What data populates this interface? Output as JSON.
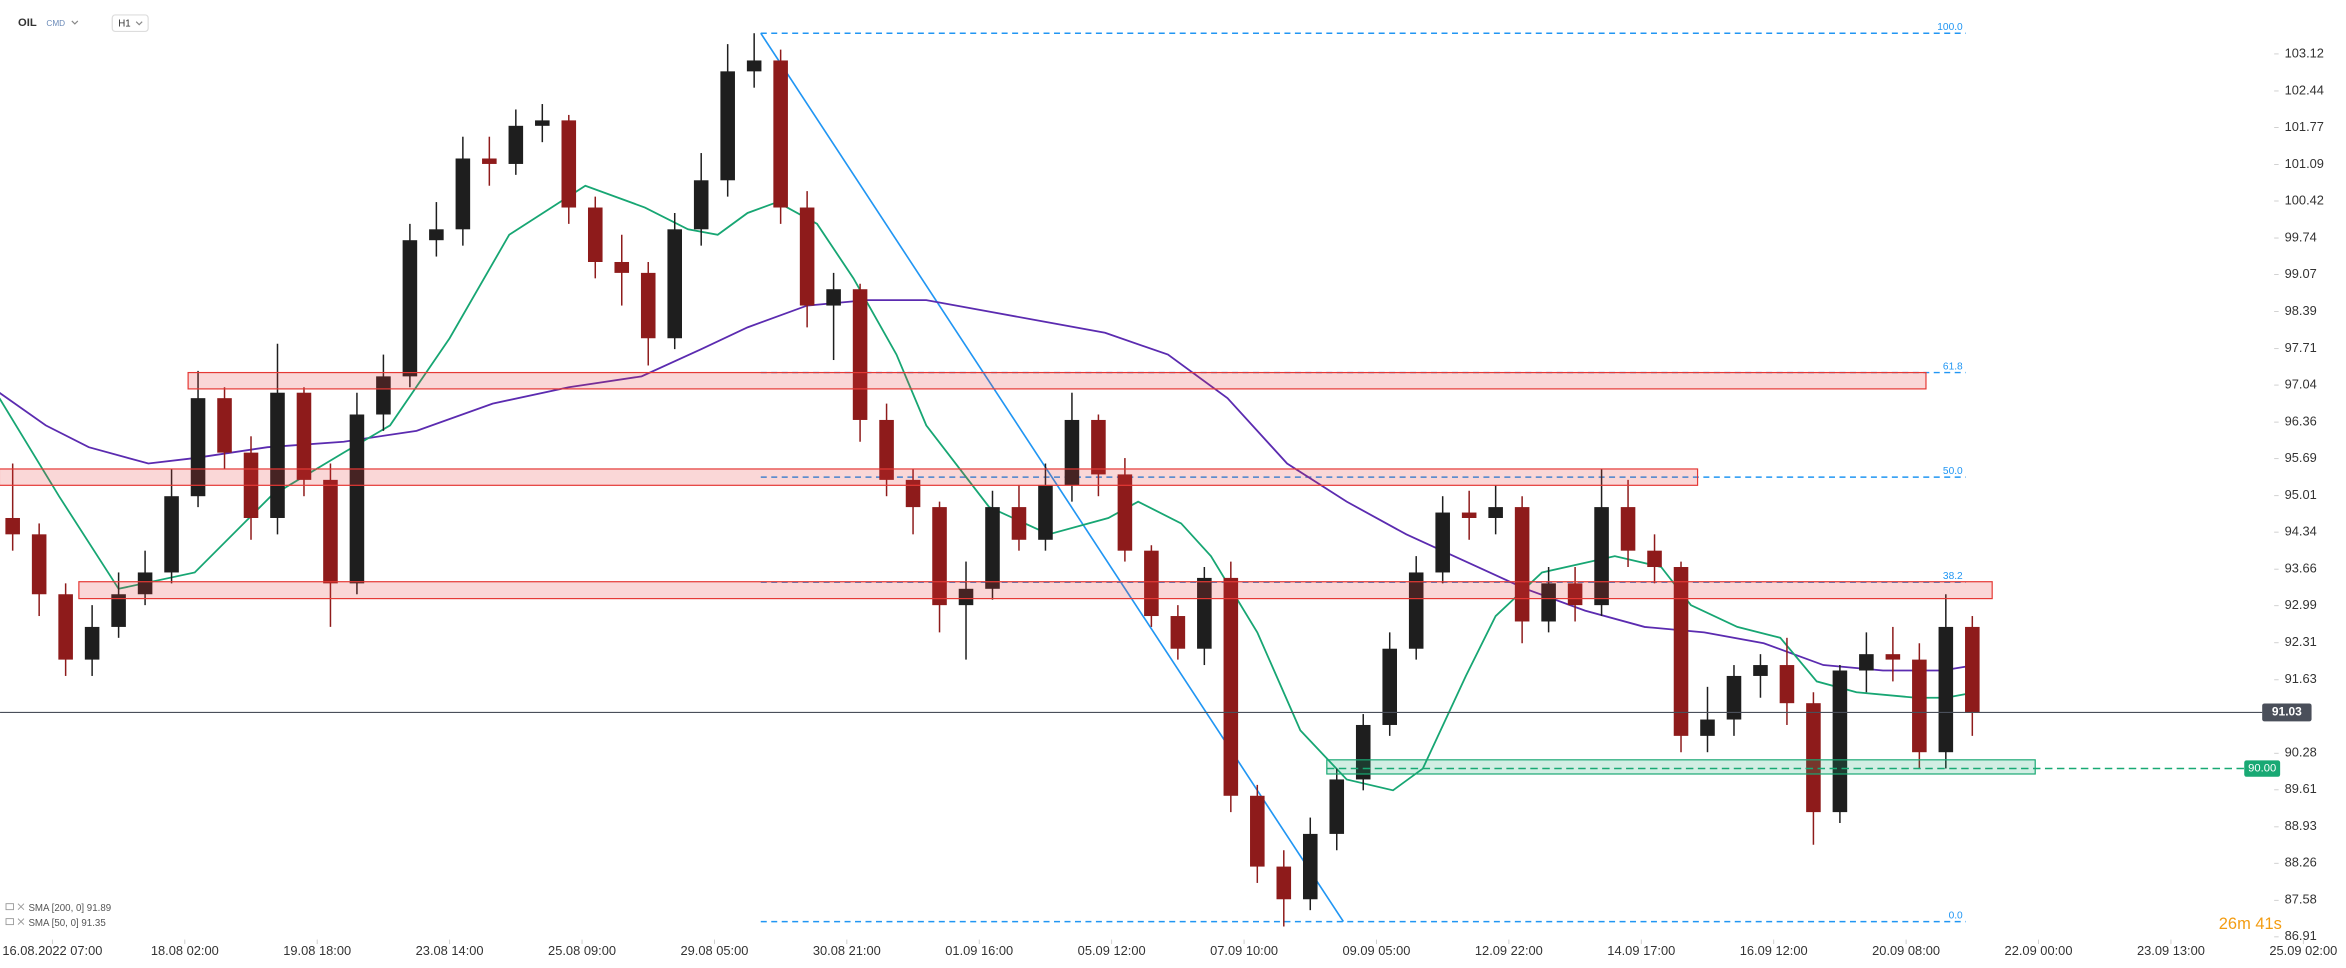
{
  "chart_data": {
    "type": "candlestick",
    "symbol": "OIL",
    "market": "CMD",
    "timeframe": "H1",
    "countdown": "26m 41s",
    "up_color": "#1e1e1e",
    "down_color": "#8e1b1b",
    "grid": false,
    "xlim": [
      -15.82,
      692.88
    ],
    "ylim": [
      86.86,
      104.11
    ],
    "xticks": [
      {
        "value": 0,
        "label": "16.08.2022 07:00"
      },
      {
        "value": 40,
        "label": "18.08 02:00"
      },
      {
        "value": 80,
        "label": "19.08 18:00"
      },
      {
        "value": 120,
        "label": "23.08 14:00"
      },
      {
        "value": 160,
        "label": "25.08 09:00"
      },
      {
        "value": 200,
        "label": "29.08 05:00"
      },
      {
        "value": 240,
        "label": "30.08 21:00"
      },
      {
        "value": 280,
        "label": "01.09 16:00"
      },
      {
        "value": 320,
        "label": "05.09 12:00"
      },
      {
        "value": 360,
        "label": "07.09 10:00"
      },
      {
        "value": 400,
        "label": "09.09 05:00"
      },
      {
        "value": 440,
        "label": "12.09 22:00"
      },
      {
        "value": 480,
        "label": "14.09 17:00"
      },
      {
        "value": 520,
        "label": "16.09 12:00"
      },
      {
        "value": 560,
        "label": "20.09 08:00"
      },
      {
        "value": 600,
        "label": "22.09 00:00"
      },
      {
        "value": 640,
        "label": "23.09 13:00"
      },
      {
        "value": 680,
        "label": "25.09 02:00"
      }
    ],
    "yticks": [
      103.12,
      102.44,
      101.77,
      101.09,
      100.42,
      99.74,
      99.07,
      98.39,
      97.71,
      97.04,
      96.36,
      95.69,
      95.01,
      94.34,
      93.66,
      92.99,
      92.31,
      91.63,
      90.28,
      89.61,
      88.93,
      88.26,
      87.58,
      86.91
    ],
    "x": [
      -12,
      -4,
      4,
      12,
      20,
      28,
      36,
      44,
      52,
      60,
      68,
      76,
      84,
      92,
      100,
      108,
      116,
      124,
      132,
      140,
      148,
      156,
      164,
      172,
      180,
      188,
      196,
      204,
      212,
      220,
      228,
      236,
      244,
      252,
      260,
      268,
      276,
      284,
      292,
      300,
      308,
      316,
      324,
      332,
      340,
      348,
      356,
      364,
      372,
      380,
      388,
      396,
      404,
      412,
      420,
      428,
      436,
      444,
      452,
      460,
      468,
      476,
      484,
      492,
      500,
      508,
      516,
      524,
      532,
      540,
      548,
      556,
      564,
      572,
      580
    ],
    "open": [
      94.6,
      94.3,
      93.2,
      92.0,
      92.6,
      93.2,
      93.6,
      95.0,
      96.8,
      95.8,
      94.6,
      96.9,
      95.3,
      93.4,
      96.5,
      97.2,
      99.7,
      99.9,
      101.2,
      101.1,
      101.8,
      101.9,
      100.3,
      99.3,
      99.1,
      97.9,
      99.9,
      100.8,
      102.8,
      103.0,
      100.3,
      98.5,
      98.8,
      96.4,
      95.3,
      94.8,
      93.0,
      93.3,
      94.8,
      94.2,
      95.2,
      96.4,
      95.4,
      94.0,
      92.8,
      92.2,
      93.5,
      89.5,
      88.2,
      87.6,
      88.8,
      89.8,
      90.8,
      92.2,
      93.6,
      94.7,
      94.6,
      94.8,
      92.7,
      93.4,
      93.0,
      94.8,
      94.0,
      93.7,
      90.6,
      90.9,
      91.7,
      91.9,
      91.2,
      89.2,
      91.8,
      92.1,
      92.0,
      90.3,
      92.6
    ],
    "high": [
      95.6,
      94.5,
      93.4,
      93.0,
      93.6,
      94.0,
      95.5,
      97.3,
      97.0,
      96.1,
      97.8,
      97.0,
      95.6,
      96.9,
      97.6,
      100.0,
      100.4,
      101.6,
      101.6,
      102.1,
      102.2,
      102.0,
      100.5,
      99.8,
      99.3,
      100.2,
      101.3,
      103.3,
      103.5,
      103.2,
      100.6,
      99.1,
      98.9,
      96.7,
      95.5,
      94.9,
      93.8,
      95.1,
      95.2,
      95.6,
      96.9,
      96.5,
      95.7,
      94.1,
      93.0,
      93.7,
      93.8,
      89.7,
      88.5,
      89.1,
      90.0,
      91.0,
      92.5,
      93.9,
      95.0,
      95.1,
      95.2,
      95.0,
      93.7,
      93.7,
      95.5,
      95.3,
      94.3,
      93.8,
      91.5,
      91.9,
      92.1,
      92.4,
      91.4,
      91.9,
      92.5,
      92.6,
      92.3,
      93.2,
      92.8
    ],
    "low": [
      94.0,
      92.8,
      91.7,
      91.7,
      92.4,
      93.0,
      93.4,
      94.8,
      95.5,
      94.2,
      94.3,
      95.0,
      92.6,
      93.2,
      96.2,
      97.0,
      99.4,
      99.6,
      100.7,
      100.9,
      101.5,
      100.0,
      99.0,
      98.5,
      97.4,
      97.7,
      99.6,
      100.5,
      102.5,
      100.0,
      98.1,
      97.5,
      96.0,
      95.0,
      94.3,
      92.5,
      92.0,
      93.1,
      94.0,
      94.0,
      94.9,
      95.0,
      93.8,
      92.6,
      92.0,
      91.9,
      89.2,
      87.9,
      87.1,
      87.4,
      88.5,
      89.6,
      90.6,
      92.0,
      93.4,
      94.2,
      94.3,
      92.3,
      92.5,
      92.7,
      92.8,
      93.7,
      93.4,
      90.3,
      90.3,
      90.6,
      91.3,
      90.8,
      88.6,
      89.0,
      91.4,
      91.6,
      90.0,
      90.0,
      90.6
    ],
    "close": [
      94.3,
      93.2,
      92.0,
      92.6,
      93.2,
      93.6,
      95.0,
      96.8,
      95.8,
      94.6,
      96.9,
      95.3,
      93.4,
      96.5,
      97.2,
      99.7,
      99.9,
      101.2,
      101.1,
      101.8,
      101.9,
      100.3,
      99.3,
      99.1,
      97.9,
      99.9,
      100.8,
      102.8,
      103.0,
      100.3,
      98.5,
      98.8,
      96.4,
      95.3,
      94.8,
      93.0,
      93.3,
      94.8,
      94.2,
      95.2,
      96.4,
      95.4,
      94.0,
      92.8,
      92.2,
      93.5,
      89.5,
      88.2,
      87.6,
      88.8,
      89.8,
      90.8,
      92.2,
      93.6,
      94.7,
      94.6,
      94.8,
      92.7,
      93.4,
      93.0,
      94.8,
      94.0,
      93.7,
      90.6,
      90.9,
      91.7,
      91.9,
      91.2,
      89.2,
      91.8,
      92.1,
      92.0,
      90.3,
      92.6,
      91.03
    ],
    "overlays": [
      {
        "name": "SMA [200, 0]",
        "last_value": 91.89,
        "color": "#5b2bb0",
        "x": [
          -16,
          -2,
          11,
          29,
          43,
          65,
          88,
          110,
          133,
          156,
          178,
          196,
          210,
          228,
          246,
          264,
          282,
          300,
          318,
          337,
          355,
          373,
          391,
          409,
          427,
          445,
          463,
          481,
          499,
          517,
          535,
          553,
          571,
          581
        ],
        "values": [
          96.9,
          96.3,
          95.9,
          95.6,
          95.7,
          95.9,
          96.0,
          96.2,
          96.7,
          97.0,
          97.2,
          97.7,
          98.1,
          98.5,
          98.6,
          98.6,
          98.4,
          98.2,
          98.0,
          97.6,
          96.8,
          95.6,
          94.9,
          94.3,
          93.8,
          93.3,
          92.9,
          92.6,
          92.5,
          92.3,
          91.9,
          91.8,
          91.8,
          91.9
        ]
      },
      {
        "name": "SMA [50, 0]",
        "last_value": 91.35,
        "color": "#17a673",
        "x": [
          -16,
          2,
          20,
          43,
          66,
          88,
          102,
          120,
          138,
          161,
          179,
          192,
          201,
          210,
          219,
          231,
          242,
          255,
          264,
          283,
          301,
          319,
          328,
          341,
          350,
          364,
          377,
          391,
          405,
          414,
          427,
          436,
          450,
          472,
          486,
          495,
          509,
          522,
          533,
          545,
          563,
          572,
          581
        ],
        "values": [
          96.8,
          95.0,
          93.3,
          93.6,
          95.0,
          95.8,
          96.3,
          97.9,
          99.8,
          100.7,
          100.3,
          99.9,
          99.8,
          100.2,
          100.4,
          100.0,
          99.0,
          97.6,
          96.3,
          94.8,
          94.3,
          94.6,
          94.9,
          94.5,
          93.9,
          92.5,
          90.7,
          89.8,
          89.6,
          90.0,
          91.7,
          92.8,
          93.6,
          93.9,
          93.7,
          93.0,
          92.6,
          92.4,
          91.6,
          91.4,
          91.3,
          91.3,
          91.4
        ]
      }
    ],
    "zones": [
      {
        "top": 97.27,
        "bottom": 96.97,
        "x_start": 41,
        "x_end": 566,
        "color": "#e53935"
      },
      {
        "top": 95.5,
        "bottom": 95.2,
        "x_start": -16,
        "x_end": 497,
        "color": "#e53935"
      },
      {
        "top": 93.43,
        "bottom": 93.12,
        "x_start": 8,
        "x_end": 586,
        "color": "#e53935"
      },
      {
        "top": 90.16,
        "bottom": 89.9,
        "x_start": 385,
        "x_end": 599,
        "color": "#19a974"
      }
    ],
    "fibonacci": {
      "x_start": 214,
      "x_end": 578,
      "color": "#2196f3",
      "levels": [
        {
          "label": "100.0",
          "price": 103.5
        },
        {
          "label": "61.8",
          "price": 97.27
        },
        {
          "label": "50.0",
          "price": 95.35
        },
        {
          "label": "38.2",
          "price": 93.42
        },
        {
          "label": "0.0",
          "price": 87.19
        }
      ]
    },
    "trendline": {
      "x": [
        214,
        390
      ],
      "y": [
        103.5,
        87.19
      ],
      "color": "#2196f3"
    },
    "last_price": 91.03,
    "alert_level": {
      "value": 90,
      "label": "90.00",
      "x_start": 385,
      "color": "#19a974"
    }
  }
}
